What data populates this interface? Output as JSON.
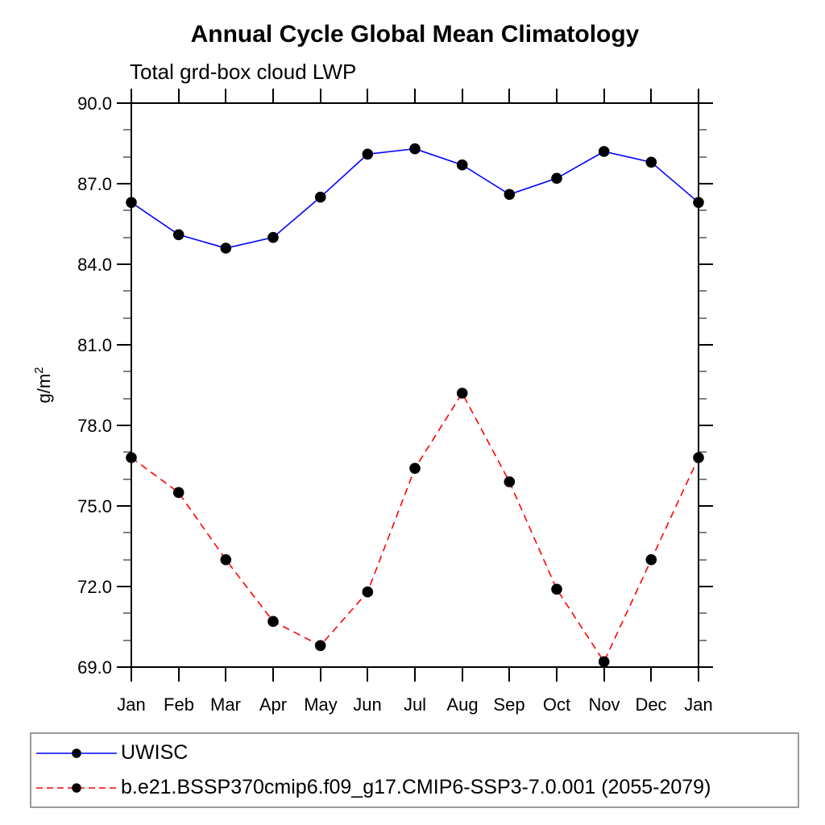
{
  "chart_data": {
    "type": "line",
    "title": "Annual Cycle Global Mean Climatology",
    "subtitle": "Total grd-box cloud LWP",
    "ylabel": "g/m²",
    "x_tick_labels": [
      "Jan",
      "Feb",
      "Mar",
      "Apr",
      "May",
      "Jun",
      "Jul",
      "Aug",
      "Sep",
      "Oct",
      "Nov",
      "Dec",
      "Jan"
    ],
    "y_tick_labels": [
      "69.0",
      "72.0",
      "75.0",
      "78.0",
      "81.0",
      "84.0",
      "87.0",
      "90.0"
    ],
    "ylim": [
      69.0,
      90.0
    ],
    "y_major_step": 3.0,
    "y_minor_step": 1.0,
    "grid": false,
    "frame": "box",
    "legend_position": "bottom",
    "colors": {
      "axis": "#000000",
      "marker": "#000000"
    },
    "series": [
      {
        "name": "UWISC",
        "color": "#0000ff",
        "line_style": "solid",
        "marker": "filled-circle",
        "marker_color": "#000000",
        "values": [
          86.3,
          85.1,
          84.6,
          85.0,
          86.5,
          88.1,
          88.3,
          87.7,
          86.6,
          87.2,
          88.2,
          87.8,
          86.3
        ]
      },
      {
        "name": "b.e21.BSSP370cmip6.f09_g17.CMIP6-SSP3-7.0.001 (2055-2079)",
        "color": "#ff0000",
        "line_style": "dashed",
        "marker": "filled-circle",
        "marker_color": "#000000",
        "values": [
          76.8,
          75.5,
          73.0,
          70.7,
          69.8,
          71.8,
          76.4,
          79.2,
          75.9,
          71.9,
          69.2,
          73.0,
          76.8
        ]
      }
    ]
  }
}
